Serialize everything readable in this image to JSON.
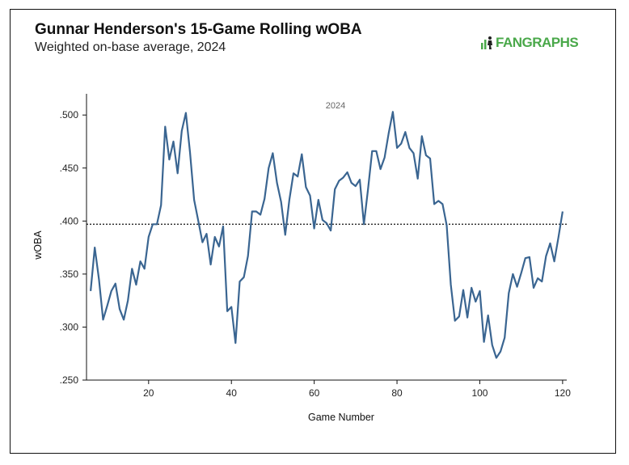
{
  "chart_data": {
    "type": "line",
    "title": "Gunnar Henderson's 15-Game Rolling wOBA",
    "subtitle": "Weighted on-base average, 2024",
    "annotation": "2024",
    "xlabel": "Game Number",
    "ylabel": "wOBA",
    "xlim": [
      5,
      121
    ],
    "ylim": [
      0.25,
      0.52
    ],
    "xticks": [
      20,
      40,
      60,
      80,
      100,
      120
    ],
    "xtick_labels": [
      "20",
      "40",
      "60",
      "80",
      "100",
      "120"
    ],
    "yticks": [
      0.25,
      0.3,
      0.35,
      0.4,
      0.45,
      0.5
    ],
    "ytick_labels": [
      ".250",
      ".300",
      ".350",
      ".400",
      ".450",
      ".500"
    ],
    "reference_line": {
      "value": 0.397,
      "style": "dotted"
    },
    "line_color": "#3a6591",
    "series": [
      {
        "name": "15-Game Rolling wOBA",
        "x": [
          6,
          7,
          8,
          9,
          10,
          11,
          12,
          13,
          14,
          15,
          16,
          17,
          18,
          19,
          20,
          21,
          22,
          23,
          24,
          25,
          26,
          27,
          28,
          29,
          30,
          31,
          32,
          33,
          34,
          35,
          36,
          37,
          38,
          39,
          40,
          41,
          42,
          43,
          44,
          45,
          46,
          47,
          48,
          49,
          50,
          51,
          52,
          53,
          54,
          55,
          56,
          57,
          58,
          59,
          60,
          61,
          62,
          63,
          64,
          65,
          66,
          67,
          68,
          69,
          70,
          71,
          72,
          73,
          74,
          75,
          76,
          77,
          78,
          79,
          80,
          81,
          82,
          83,
          84,
          85,
          86,
          87,
          88,
          89,
          90,
          91,
          92,
          93,
          94,
          95,
          96,
          97,
          98,
          99,
          100,
          101,
          102,
          103,
          104,
          105,
          106,
          107,
          108,
          109,
          110,
          111,
          112,
          113,
          114,
          115,
          116,
          117,
          118,
          119,
          120
        ],
        "values": [
          0.334,
          0.375,
          0.345,
          0.307,
          0.32,
          0.334,
          0.341,
          0.317,
          0.307,
          0.325,
          0.355,
          0.34,
          0.362,
          0.355,
          0.385,
          0.397,
          0.397,
          0.415,
          0.489,
          0.458,
          0.475,
          0.445,
          0.485,
          0.502,
          0.465,
          0.42,
          0.4,
          0.38,
          0.388,
          0.359,
          0.385,
          0.376,
          0.395,
          0.315,
          0.319,
          0.285,
          0.343,
          0.347,
          0.367,
          0.409,
          0.409,
          0.406,
          0.421,
          0.45,
          0.464,
          0.436,
          0.418,
          0.387,
          0.42,
          0.445,
          0.442,
          0.463,
          0.432,
          0.424,
          0.393,
          0.42,
          0.401,
          0.398,
          0.391,
          0.43,
          0.438,
          0.441,
          0.446,
          0.436,
          0.433,
          0.439,
          0.397,
          0.43,
          0.466,
          0.466,
          0.449,
          0.46,
          0.483,
          0.503,
          0.469,
          0.473,
          0.484,
          0.469,
          0.464,
          0.44,
          0.48,
          0.462,
          0.459,
          0.416,
          0.419,
          0.416,
          0.396,
          0.34,
          0.306,
          0.31,
          0.335,
          0.309,
          0.337,
          0.324,
          0.334,
          0.286,
          0.311,
          0.283,
          0.271,
          0.277,
          0.29,
          0.332,
          0.35,
          0.338,
          0.351,
          0.365,
          0.366,
          0.337,
          0.346,
          0.343,
          0.367,
          0.379,
          0.362,
          0.385,
          0.409
        ]
      }
    ]
  },
  "branding": {
    "logo_text": "FANGRAPHS",
    "logo_color": "#4aa84a"
  }
}
